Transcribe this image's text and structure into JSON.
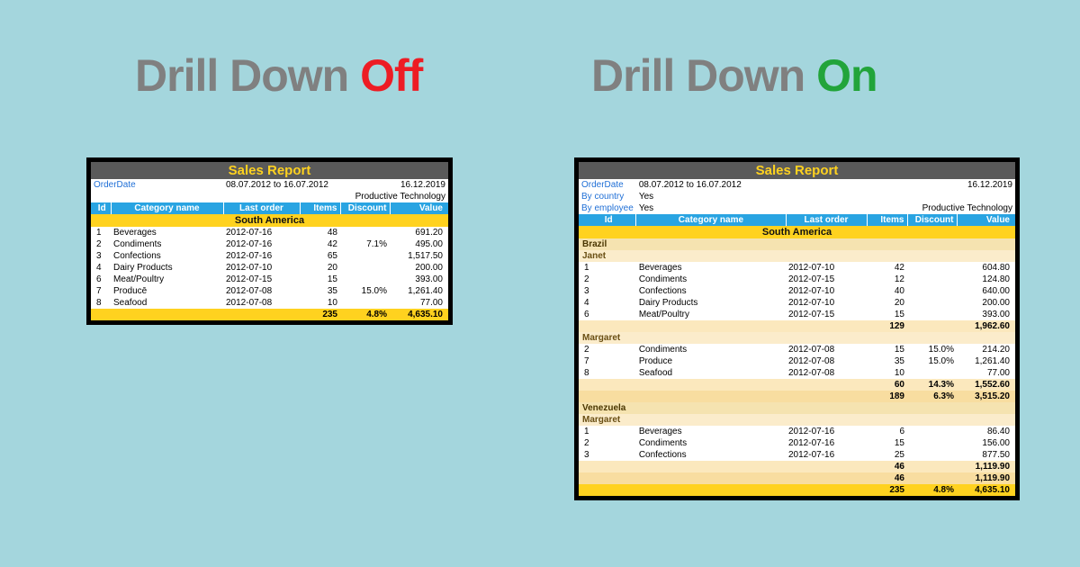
{
  "headlines": {
    "left_prefix": "Drill Down ",
    "left_state": "Off",
    "right_prefix": "Drill Down ",
    "right_state": "On"
  },
  "colors": {
    "page_bg": "#a4d6dd",
    "off": "#ed1c24",
    "on": "#22a43a",
    "title_bg": "#5a5a5a",
    "title_fg": "#ffd21f",
    "header_bg": "#29a4e2",
    "band_bg": "#ffd21f",
    "subband1_bg": "#f5e3b0",
    "subband2_bg": "#fbeccb",
    "total_light": "#f8dda0",
    "total_lighter": "#fbe8bd"
  },
  "left_report": {
    "title": "Sales Report",
    "filters": {
      "order_label": "OrderDate",
      "order_value": "08.07.2012 to 16.07.2012",
      "date": "16.12.2019",
      "sub": "Productive Technology"
    },
    "columns": {
      "id": "Id",
      "name": "Category name",
      "last": "Last order",
      "items": "Items",
      "disc": "Discount",
      "val": "Value"
    },
    "group": "South America",
    "rows": [
      {
        "id": "1",
        "name": "Beverages",
        "last": "2012-07-16",
        "items": "48",
        "disc": "",
        "val": "691.20"
      },
      {
        "id": "2",
        "name": "Condiments",
        "last": "2012-07-16",
        "items": "42",
        "disc": "7.1%",
        "val": "495.00"
      },
      {
        "id": "3",
        "name": "Confections",
        "last": "2012-07-16",
        "items": "65",
        "disc": "",
        "val": "1,517.50"
      },
      {
        "id": "4",
        "name": "Dairy Products",
        "last": "2012-07-10",
        "items": "20",
        "disc": "",
        "val": "200.00"
      },
      {
        "id": "6",
        "name": "Meat/Poultry",
        "last": "2012-07-15",
        "items": "15",
        "disc": "",
        "val": "393.00"
      },
      {
        "id": "7",
        "name": "Producē",
        "last": "2012-07-08",
        "items": "35",
        "disc": "15.0%",
        "val": "1,261.40"
      },
      {
        "id": "8",
        "name": "Seafood",
        "last": "2012-07-08",
        "items": "10",
        "disc": "",
        "val": "77.00"
      }
    ],
    "total": {
      "items": "235",
      "disc": "4.8%",
      "val": "4,635.10"
    }
  },
  "right_report": {
    "title": "Sales Report",
    "filters": {
      "order_label": "OrderDate",
      "order_value": "08.07.2012 to 16.07.2012",
      "country_label": "By country",
      "country_value": "Yes",
      "emp_label": "By employee",
      "emp_value": "Yes",
      "date": "16.12.2019",
      "sub": "Productive Technology"
    },
    "columns": {
      "id": "Id",
      "name": "Category name",
      "last": "Last order",
      "items": "Items",
      "disc": "Discount",
      "val": "Value"
    },
    "group": "South America",
    "sections": [
      {
        "country": "Brazil",
        "employees": [
          {
            "name": "Janet",
            "rows": [
              {
                "id": "1",
                "name": "Beverages",
                "last": "2012-07-10",
                "items": "42",
                "disc": "",
                "val": "604.80"
              },
              {
                "id": "2",
                "name": "Condiments",
                "last": "2012-07-15",
                "items": "12",
                "disc": "",
                "val": "124.80"
              },
              {
                "id": "3",
                "name": "Confections",
                "last": "2012-07-10",
                "items": "40",
                "disc": "",
                "val": "640.00"
              },
              {
                "id": "4",
                "name": "Dairy Products",
                "last": "2012-07-10",
                "items": "20",
                "disc": "",
                "val": "200.00"
              },
              {
                "id": "6",
                "name": "Meat/Poultry",
                "last": "2012-07-15",
                "items": "15",
                "disc": "",
                "val": "393.00"
              }
            ],
            "total": {
              "items": "129",
              "disc": "",
              "val": "1,962.60"
            }
          },
          {
            "name": "Margaret",
            "rows": [
              {
                "id": "2",
                "name": "Condiments",
                "last": "2012-07-08",
                "items": "15",
                "disc": "15.0%",
                "val": "214.20"
              },
              {
                "id": "7",
                "name": "Produce",
                "last": "2012-07-08",
                "items": "35",
                "disc": "15.0%",
                "val": "1,261.40"
              },
              {
                "id": "8",
                "name": "Seafood",
                "last": "2012-07-08",
                "items": "10",
                "disc": "",
                "val": "77.00"
              }
            ],
            "total": {
              "items": "60",
              "disc": "14.3%",
              "val": "1,552.60"
            }
          }
        ],
        "total": {
          "items": "189",
          "disc": "6.3%",
          "val": "3,515.20"
        }
      },
      {
        "country": "Venezuela",
        "employees": [
          {
            "name": "Margaret",
            "rows": [
              {
                "id": "1",
                "name": "Beverages",
                "last": "2012-07-16",
                "items": "6",
                "disc": "",
                "val": "86.40"
              },
              {
                "id": "2",
                "name": "Condiments",
                "last": "2012-07-16",
                "items": "15",
                "disc": "",
                "val": "156.00"
              },
              {
                "id": "3",
                "name": "Confections",
                "last": "2012-07-16",
                "items": "25",
                "disc": "",
                "val": "877.50"
              }
            ],
            "total": {
              "items": "46",
              "disc": "",
              "val": "1,119.90"
            }
          }
        ],
        "total": {
          "items": "46",
          "disc": "",
          "val": "1,119.90"
        }
      }
    ],
    "grand_total": {
      "items": "235",
      "disc": "4.8%",
      "val": "4,635.10"
    }
  }
}
